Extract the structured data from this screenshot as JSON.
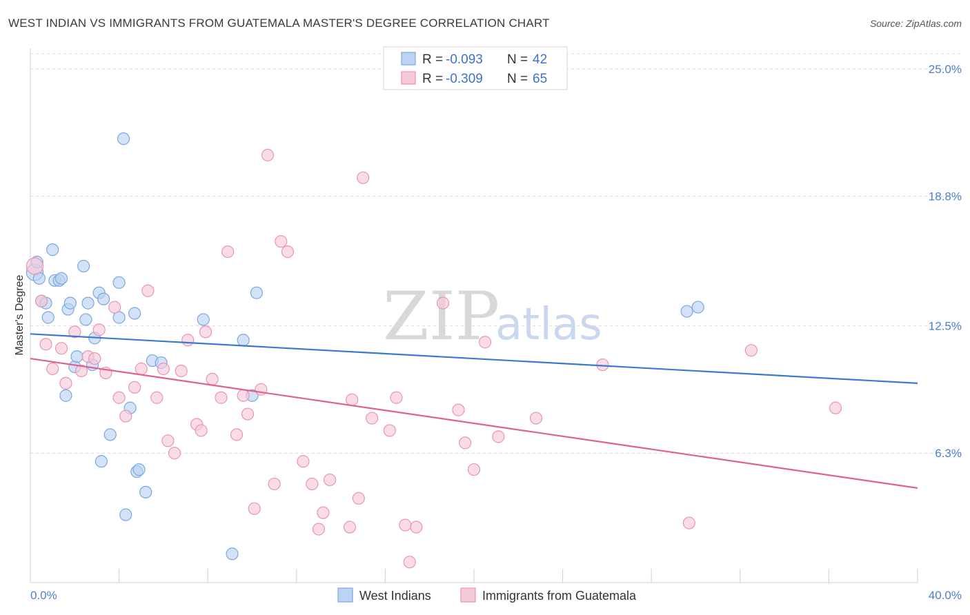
{
  "chart_data": {
    "type": "scatter",
    "title": "WEST INDIAN VS IMMIGRANTS FROM GUATEMALA MASTER'S DEGREE CORRELATION CHART",
    "source": "Source: ZipAtlas.com",
    "xlabel": "",
    "ylabel": "Master's Degree",
    "xlim": [
      0,
      40
    ],
    "ylim": [
      0,
      26.0
    ],
    "x_tick_labels": [
      "0.0%",
      "40.0%"
    ],
    "y_ticks": [
      6.3,
      12.5,
      18.8,
      25.0
    ],
    "y_tick_labels": [
      "6.3%",
      "12.5%",
      "18.8%",
      "25.0%"
    ],
    "grid": true,
    "watermark": {
      "zip": "ZIP",
      "atlas": "atlas"
    },
    "legend": {
      "position": "top-center",
      "rows": [
        {
          "r_label": "R = ",
          "r_value": "-0.093",
          "n_label": "N = ",
          "n_value": "42"
        },
        {
          "r_label": "R = ",
          "r_value": "-0.309",
          "n_label": "N = ",
          "n_value": "65"
        }
      ]
    },
    "series": [
      {
        "name": "West Indians",
        "color": "#7aa7e0",
        "fill": "#bcd3f2",
        "line_color": "#3b78d0",
        "trend": {
          "x": [
            0,
            40
          ],
          "y": [
            12.1,
            9.7
          ]
        },
        "points": [
          [
            0.2,
            15.1
          ],
          [
            0.3,
            15.6
          ],
          [
            0.4,
            14.8
          ],
          [
            0.5,
            13.7
          ],
          [
            0.7,
            13.6
          ],
          [
            0.8,
            12.9
          ],
          [
            1.0,
            16.2
          ],
          [
            1.1,
            14.7
          ],
          [
            1.3,
            14.7
          ],
          [
            1.4,
            14.8
          ],
          [
            1.6,
            9.1
          ],
          [
            1.7,
            13.3
          ],
          [
            1.8,
            13.6
          ],
          [
            2.0,
            10.5
          ],
          [
            2.1,
            11.0
          ],
          [
            2.4,
            15.4
          ],
          [
            2.5,
            12.8
          ],
          [
            2.6,
            13.6
          ],
          [
            2.8,
            10.6
          ],
          [
            2.9,
            11.9
          ],
          [
            3.1,
            14.1
          ],
          [
            3.3,
            13.8
          ],
          [
            3.2,
            5.9
          ],
          [
            3.6,
            7.2
          ],
          [
            4.0,
            12.9
          ],
          [
            4.0,
            14.6
          ],
          [
            4.2,
            21.6
          ],
          [
            4.3,
            3.3
          ],
          [
            4.5,
            8.5
          ],
          [
            4.7,
            13.1
          ],
          [
            4.8,
            5.4
          ],
          [
            4.9,
            5.5
          ],
          [
            5.2,
            4.4
          ],
          [
            5.5,
            10.8
          ],
          [
            5.9,
            10.7
          ],
          [
            7.8,
            12.8
          ],
          [
            9.1,
            1.4
          ],
          [
            9.6,
            11.8
          ],
          [
            10.0,
            9.1
          ],
          [
            10.2,
            14.1
          ],
          [
            29.6,
            13.2
          ],
          [
            30.1,
            13.4
          ]
        ]
      },
      {
        "name": "Immigrants from Guatemala",
        "color": "#e894b4",
        "fill": "#f6c9da",
        "line_color": "#e0608f",
        "trend": {
          "x": [
            0,
            40
          ],
          "y": [
            10.9,
            4.6
          ]
        },
        "points": [
          [
            0.2,
            15.4
          ],
          [
            0.5,
            13.7
          ],
          [
            0.7,
            11.6
          ],
          [
            1.0,
            10.4
          ],
          [
            1.4,
            11.4
          ],
          [
            1.6,
            9.7
          ],
          [
            2.0,
            12.2
          ],
          [
            2.3,
            10.3
          ],
          [
            2.6,
            11.0
          ],
          [
            2.9,
            10.9
          ],
          [
            3.1,
            12.3
          ],
          [
            3.4,
            10.2
          ],
          [
            3.8,
            13.4
          ],
          [
            4.0,
            9.0
          ],
          [
            4.3,
            8.1
          ],
          [
            4.7,
            9.5
          ],
          [
            5.0,
            10.4
          ],
          [
            5.3,
            14.2
          ],
          [
            5.7,
            9.0
          ],
          [
            6.0,
            10.4
          ],
          [
            6.2,
            6.9
          ],
          [
            6.5,
            6.3
          ],
          [
            6.8,
            10.3
          ],
          [
            7.1,
            11.8
          ],
          [
            7.5,
            7.7
          ],
          [
            7.7,
            7.4
          ],
          [
            7.9,
            12.2
          ],
          [
            8.2,
            9.9
          ],
          [
            8.6,
            9.0
          ],
          [
            8.9,
            16.1
          ],
          [
            9.3,
            7.2
          ],
          [
            9.6,
            9.1
          ],
          [
            9.8,
            8.2
          ],
          [
            10.1,
            3.6
          ],
          [
            10.4,
            9.4
          ],
          [
            10.7,
            20.8
          ],
          [
            11.0,
            4.8
          ],
          [
            11.3,
            16.6
          ],
          [
            11.6,
            16.1
          ],
          [
            12.3,
            5.9
          ],
          [
            12.7,
            4.8
          ],
          [
            13.0,
            2.6
          ],
          [
            13.2,
            3.4
          ],
          [
            13.5,
            5.0
          ],
          [
            14.4,
            2.7
          ],
          [
            14.8,
            4.1
          ],
          [
            14.5,
            8.9
          ],
          [
            15.0,
            19.7
          ],
          [
            15.4,
            8.0
          ],
          [
            16.2,
            7.4
          ],
          [
            16.5,
            9.0
          ],
          [
            16.9,
            2.8
          ],
          [
            17.1,
            1.0
          ],
          [
            17.4,
            2.7
          ],
          [
            18.6,
            13.6
          ],
          [
            19.3,
            8.4
          ],
          [
            19.6,
            6.8
          ],
          [
            20.0,
            5.5
          ],
          [
            20.5,
            11.7
          ],
          [
            21.1,
            7.1
          ],
          [
            22.8,
            8.0
          ],
          [
            25.8,
            10.6
          ],
          [
            29.7,
            2.9
          ],
          [
            32.5,
            11.3
          ],
          [
            36.3,
            8.5
          ]
        ]
      }
    ]
  },
  "colors": {
    "accent_blue": "#3b72c8",
    "axis": "#c8c8c8"
  }
}
